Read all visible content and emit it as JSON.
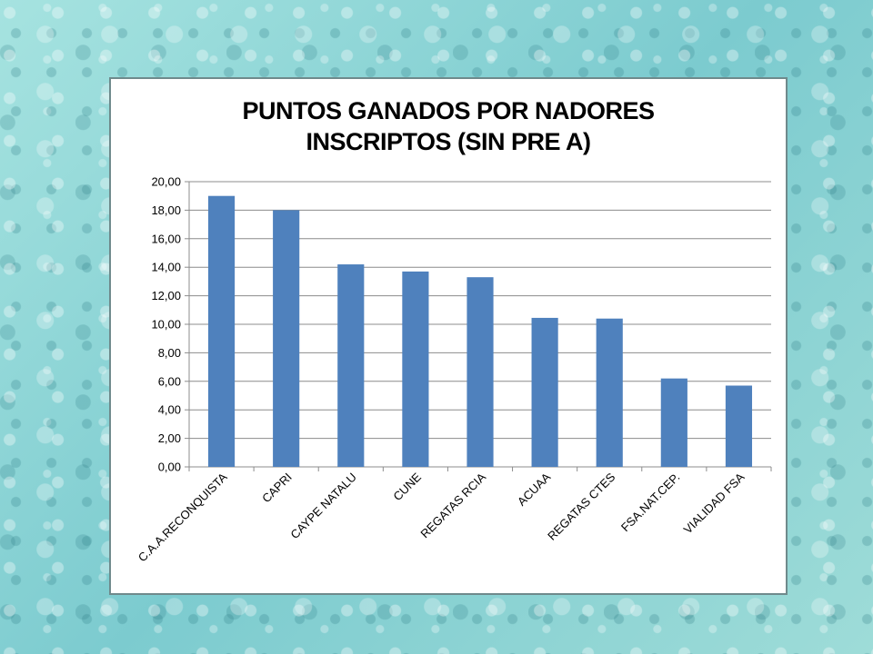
{
  "chart_data": {
    "type": "bar",
    "title_lines": [
      "PUNTOS GANADOS POR NADORES",
      "INSCRIPTOS (SIN PRE A)"
    ],
    "categories": [
      "C.A.A.RECONQUISTA",
      "CAPRI",
      "CAYPE NATALU",
      "CUNE",
      "REGATAS RCIA",
      "ACUAA",
      "REGATAS CTES",
      "FSA.NAT.CEP.",
      "VIALIDAD FSA"
    ],
    "values": [
      19.0,
      18.0,
      14.2,
      13.7,
      13.3,
      10.45,
      10.4,
      6.2,
      5.7
    ],
    "ylim": [
      0,
      20
    ],
    "ytick_step": 2,
    "ytick_labels": [
      "0,00",
      "2,00",
      "4,00",
      "6,00",
      "8,00",
      "10,00",
      "12,00",
      "14,00",
      "16,00",
      "18,00",
      "20,00"
    ],
    "grid": true,
    "legend": "none",
    "bar_color": "#4f81bd"
  }
}
